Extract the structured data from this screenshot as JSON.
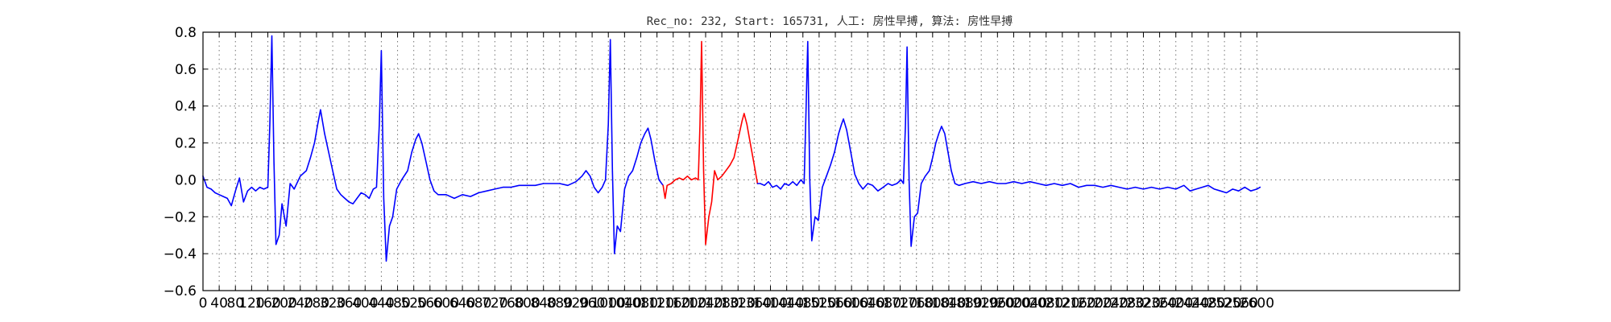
{
  "chart_data": {
    "type": "line",
    "title": "Rec_no: 232, Start: 165731, 人工: 房性早搏, 算法: 房性早搏",
    "xlabel": "",
    "ylabel": "",
    "xlim": [
      0,
      3100
    ],
    "ylim": [
      -0.6,
      0.8
    ],
    "grid": true,
    "yticks": [
      -0.6,
      -0.4,
      -0.2,
      0.0,
      0.2,
      0.4,
      0.6,
      0.8
    ],
    "ytick_labels": [
      "−0.6",
      "−0.4",
      "−0.2",
      "0.0",
      "0.2",
      "0.4",
      "0.6",
      "0.8"
    ],
    "xticks": [
      0,
      40,
      80,
      120,
      160,
      200,
      240,
      280,
      320,
      360,
      400,
      440,
      480,
      520,
      560,
      600,
      640,
      680,
      720,
      760,
      800,
      840,
      880,
      920,
      960,
      1000,
      1040,
      1080,
      1120,
      1160,
      1200,
      1240,
      1280,
      1320,
      1360,
      1400,
      1440,
      1480,
      1520,
      1560,
      1600,
      1640,
      1680,
      1720,
      1760,
      1800,
      1840,
      1880,
      1920,
      1960,
      2000,
      2040,
      2080,
      2120,
      2160,
      2200,
      2240,
      2280,
      2320,
      2360,
      2400,
      2440,
      2480,
      2520,
      2560,
      2600
    ],
    "xtick_labels": [
      "0",
      "40",
      "80",
      "120",
      "160",
      "200",
      "240",
      "280",
      "320",
      "360",
      "400",
      "440",
      "480",
      "520",
      "560",
      "600",
      "640",
      "680",
      "720",
      "760",
      "800",
      "840",
      "880",
      "920",
      "960",
      "1000",
      "1040",
      "1080",
      "1120",
      "1160",
      "1200",
      "1240",
      "1280",
      "1320",
      "1360",
      "1400",
      "1440",
      "1480",
      "1520",
      "1560",
      "1600",
      "1640",
      "1680",
      "1720",
      "1760",
      "1800",
      "1840",
      "1880",
      "1920",
      "1960",
      "2000",
      "2040",
      "2080",
      "2120",
      "2160",
      "2200",
      "2240",
      "2280",
      "2320",
      "2360",
      "2400",
      "2440",
      "2480",
      "2520",
      "2560",
      "2600"
    ],
    "series": [
      {
        "color": "#0000ff",
        "points": [
          [
            0,
            0.02
          ],
          [
            10,
            -0.04
          ],
          [
            20,
            -0.05
          ],
          [
            30,
            -0.07
          ],
          [
            40,
            -0.08
          ],
          [
            50,
            -0.09
          ],
          [
            60,
            -0.1
          ],
          [
            70,
            -0.14
          ],
          [
            80,
            -0.06
          ],
          [
            90,
            0.01
          ],
          [
            100,
            -0.12
          ],
          [
            110,
            -0.06
          ],
          [
            120,
            -0.04
          ],
          [
            130,
            -0.06
          ],
          [
            140,
            -0.04
          ],
          [
            150,
            -0.05
          ],
          [
            160,
            -0.04
          ],
          [
            165,
            0.3
          ],
          [
            170,
            0.78
          ],
          [
            175,
            0.1
          ],
          [
            180,
            -0.35
          ],
          [
            188,
            -0.3
          ],
          [
            195,
            -0.13
          ],
          [
            205,
            -0.25
          ],
          [
            215,
            -0.02
          ],
          [
            225,
            -0.05
          ],
          [
            240,
            0.02
          ],
          [
            255,
            0.05
          ],
          [
            265,
            0.12
          ],
          [
            275,
            0.2
          ],
          [
            283,
            0.3
          ],
          [
            290,
            0.38
          ],
          [
            300,
            0.25
          ],
          [
            310,
            0.15
          ],
          [
            320,
            0.05
          ],
          [
            330,
            -0.05
          ],
          [
            340,
            -0.08
          ],
          [
            350,
            -0.1
          ],
          [
            360,
            -0.12
          ],
          [
            370,
            -0.13
          ],
          [
            380,
            -0.1
          ],
          [
            390,
            -0.07
          ],
          [
            400,
            -0.08
          ],
          [
            410,
            -0.1
          ],
          [
            420,
            -0.05
          ],
          [
            428,
            -0.04
          ],
          [
            435,
            0.3
          ],
          [
            440,
            0.7
          ],
          [
            446,
            -0.1
          ],
          [
            452,
            -0.44
          ],
          [
            460,
            -0.25
          ],
          [
            468,
            -0.2
          ],
          [
            478,
            -0.05
          ],
          [
            490,
            0.0
          ],
          [
            505,
            0.05
          ],
          [
            515,
            0.15
          ],
          [
            525,
            0.22
          ],
          [
            532,
            0.25
          ],
          [
            540,
            0.2
          ],
          [
            550,
            0.1
          ],
          [
            560,
            0.0
          ],
          [
            570,
            -0.06
          ],
          [
            580,
            -0.08
          ],
          [
            600,
            -0.08
          ],
          [
            620,
            -0.1
          ],
          [
            640,
            -0.08
          ],
          [
            660,
            -0.09
          ],
          [
            680,
            -0.07
          ],
          [
            700,
            -0.06
          ],
          [
            720,
            -0.05
          ],
          [
            740,
            -0.04
          ],
          [
            760,
            -0.04
          ],
          [
            780,
            -0.03
          ],
          [
            800,
            -0.03
          ],
          [
            820,
            -0.03
          ],
          [
            840,
            -0.02
          ],
          [
            860,
            -0.02
          ],
          [
            880,
            -0.02
          ],
          [
            900,
            -0.03
          ],
          [
            920,
            -0.01
          ],
          [
            935,
            0.02
          ],
          [
            945,
            0.05
          ],
          [
            955,
            0.02
          ],
          [
            965,
            -0.04
          ],
          [
            975,
            -0.07
          ],
          [
            985,
            -0.04
          ],
          [
            993,
            0.0
          ],
          [
            1000,
            0.3
          ],
          [
            1005,
            0.76
          ],
          [
            1010,
            0.05
          ],
          [
            1015,
            -0.4
          ],
          [
            1022,
            -0.25
          ],
          [
            1030,
            -0.28
          ],
          [
            1040,
            -0.05
          ],
          [
            1050,
            0.02
          ],
          [
            1060,
            0.05
          ],
          [
            1070,
            0.12
          ],
          [
            1080,
            0.2
          ],
          [
            1090,
            0.25
          ],
          [
            1098,
            0.28
          ],
          [
            1105,
            0.22
          ],
          [
            1115,
            0.1
          ],
          [
            1125,
            0.0
          ],
          [
            1135,
            -0.03
          ]
        ]
      },
      {
        "color": "#ff0000",
        "points": [
          [
            1135,
            -0.03
          ],
          [
            1140,
            -0.1
          ],
          [
            1145,
            -0.03
          ],
          [
            1155,
            -0.02
          ],
          [
            1165,
            0.0
          ],
          [
            1175,
            0.01
          ],
          [
            1185,
            0.0
          ],
          [
            1195,
            0.02
          ],
          [
            1205,
            0.0
          ],
          [
            1215,
            0.01
          ],
          [
            1222,
            0.0
          ],
          [
            1226,
            0.3
          ],
          [
            1230,
            0.75
          ],
          [
            1235,
            0.05
          ],
          [
            1240,
            -0.35
          ],
          [
            1248,
            -0.2
          ],
          [
            1255,
            -0.12
          ],
          [
            1262,
            0.05
          ],
          [
            1270,
            0.0
          ],
          [
            1280,
            0.02
          ],
          [
            1290,
            0.05
          ],
          [
            1300,
            0.08
          ],
          [
            1310,
            0.12
          ],
          [
            1320,
            0.22
          ],
          [
            1330,
            0.32
          ],
          [
            1335,
            0.36
          ],
          [
            1342,
            0.3
          ],
          [
            1350,
            0.2
          ],
          [
            1360,
            0.08
          ],
          [
            1368,
            -0.02
          ]
        ]
      },
      {
        "color": "#0000ff",
        "points": [
          [
            1368,
            -0.02
          ],
          [
            1375,
            -0.02
          ],
          [
            1385,
            -0.03
          ],
          [
            1395,
            -0.01
          ],
          [
            1405,
            -0.04
          ],
          [
            1415,
            -0.03
          ],
          [
            1425,
            -0.05
          ],
          [
            1435,
            -0.02
          ],
          [
            1445,
            -0.03
          ],
          [
            1455,
            -0.01
          ],
          [
            1465,
            -0.03
          ],
          [
            1475,
            0.0
          ],
          [
            1483,
            -0.02
          ],
          [
            1488,
            0.4
          ],
          [
            1492,
            0.75
          ],
          [
            1497,
            0.0
          ],
          [
            1502,
            -0.33
          ],
          [
            1510,
            -0.2
          ],
          [
            1518,
            -0.22
          ],
          [
            1528,
            -0.04
          ],
          [
            1538,
            0.02
          ],
          [
            1548,
            0.08
          ],
          [
            1558,
            0.15
          ],
          [
            1568,
            0.25
          ],
          [
            1575,
            0.3
          ],
          [
            1580,
            0.33
          ],
          [
            1588,
            0.27
          ],
          [
            1598,
            0.15
          ],
          [
            1608,
            0.03
          ],
          [
            1618,
            -0.02
          ],
          [
            1628,
            -0.05
          ],
          [
            1640,
            -0.02
          ],
          [
            1652,
            -0.03
          ],
          [
            1665,
            -0.06
          ],
          [
            1678,
            -0.04
          ],
          [
            1690,
            -0.02
          ],
          [
            1700,
            -0.03
          ],
          [
            1712,
            -0.02
          ],
          [
            1722,
            0.0
          ],
          [
            1728,
            -0.02
          ],
          [
            1733,
            0.3
          ],
          [
            1737,
            0.72
          ],
          [
            1742,
            0.0
          ],
          [
            1747,
            -0.36
          ],
          [
            1755,
            -0.2
          ],
          [
            1763,
            -0.18
          ],
          [
            1772,
            -0.02
          ],
          [
            1782,
            0.02
          ],
          [
            1792,
            0.05
          ],
          [
            1800,
            0.12
          ],
          [
            1808,
            0.2
          ],
          [
            1815,
            0.25
          ],
          [
            1822,
            0.29
          ],
          [
            1830,
            0.25
          ],
          [
            1838,
            0.15
          ],
          [
            1846,
            0.05
          ],
          [
            1855,
            -0.02
          ],
          [
            1865,
            -0.03
          ],
          [
            1880,
            -0.02
          ],
          [
            1900,
            -0.01
          ],
          [
            1920,
            -0.02
          ],
          [
            1940,
            -0.01
          ],
          [
            1960,
            -0.02
          ],
          [
            1980,
            -0.02
          ],
          [
            2000,
            -0.01
          ],
          [
            2020,
            -0.02
          ],
          [
            2040,
            -0.01
          ],
          [
            2060,
            -0.02
          ],
          [
            2080,
            -0.03
          ],
          [
            2100,
            -0.02
          ],
          [
            2120,
            -0.03
          ],
          [
            2140,
            -0.02
          ],
          [
            2160,
            -0.04
          ],
          [
            2180,
            -0.03
          ],
          [
            2200,
            -0.03
          ],
          [
            2220,
            -0.04
          ],
          [
            2240,
            -0.03
          ],
          [
            2260,
            -0.04
          ],
          [
            2280,
            -0.05
          ],
          [
            2300,
            -0.04
          ],
          [
            2320,
            -0.05
          ],
          [
            2340,
            -0.04
          ],
          [
            2360,
            -0.05
          ],
          [
            2380,
            -0.04
          ],
          [
            2400,
            -0.05
          ],
          [
            2420,
            -0.03
          ],
          [
            2435,
            -0.06
          ],
          [
            2450,
            -0.05
          ],
          [
            2465,
            -0.04
          ],
          [
            2480,
            -0.03
          ],
          [
            2495,
            -0.05
          ],
          [
            2510,
            -0.06
          ],
          [
            2525,
            -0.07
          ],
          [
            2540,
            -0.05
          ],
          [
            2555,
            -0.06
          ],
          [
            2570,
            -0.04
          ],
          [
            2585,
            -0.06
          ],
          [
            2600,
            -0.05
          ],
          [
            2608,
            -0.04
          ]
        ]
      }
    ]
  }
}
